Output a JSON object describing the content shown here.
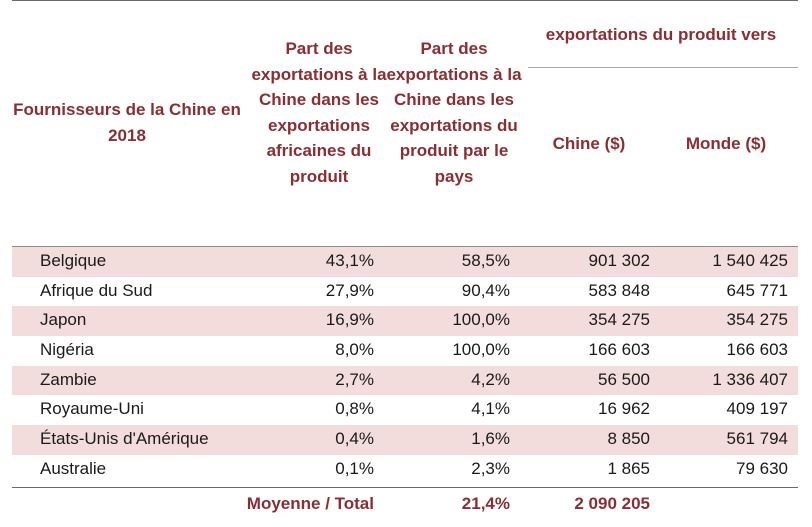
{
  "header": {
    "supplier": "Fournisseurs de la Chine en 2018",
    "share_african": "Part des exportations à la Chine dans les exportations africaines du produit",
    "share_country": "Part des exportations à la Chine dans les exportations du produit par le pays",
    "group": "exportations du produit vers",
    "china": "Chine ($)",
    "monde": "Monde ($)"
  },
  "rows": [
    {
      "name": "Belgique",
      "share_african": "43,1%",
      "share_country": "58,5%",
      "china": "901 302",
      "monde": "1 540 425"
    },
    {
      "name": "Afrique du Sud",
      "share_african": "27,9%",
      "share_country": "90,4%",
      "china": "583 848",
      "monde": "645 771"
    },
    {
      "name": "Japon",
      "share_african": "16,9%",
      "share_country": "100,0%",
      "china": "354 275",
      "monde": "354 275"
    },
    {
      "name": "Nigéria",
      "share_african": "8,0%",
      "share_country": "100,0%",
      "china": "166 603",
      "monde": "166 603"
    },
    {
      "name": "Zambie",
      "share_african": "2,7%",
      "share_country": "4,2%",
      "china": "56 500",
      "monde": "1 336 407"
    },
    {
      "name": "Royaume-Uni",
      "share_african": "0,8%",
      "share_country": "4,1%",
      "china": "16 962",
      "monde": "409 197"
    },
    {
      "name": "États-Unis d'Amérique",
      "share_african": "0,4%",
      "share_country": "1,6%",
      "china": "8 850",
      "monde": "561 794"
    },
    {
      "name": "Australie",
      "share_african": "0,1%",
      "share_country": "2,3%",
      "china": "1 865",
      "monde": "79 630"
    }
  ],
  "total": {
    "label": "Moyenne / Total",
    "share_country": "21,4%",
    "china": "2 090 205"
  },
  "colors": {
    "header_text": "#8b2e34",
    "row_shade": "#f2dcdc"
  }
}
